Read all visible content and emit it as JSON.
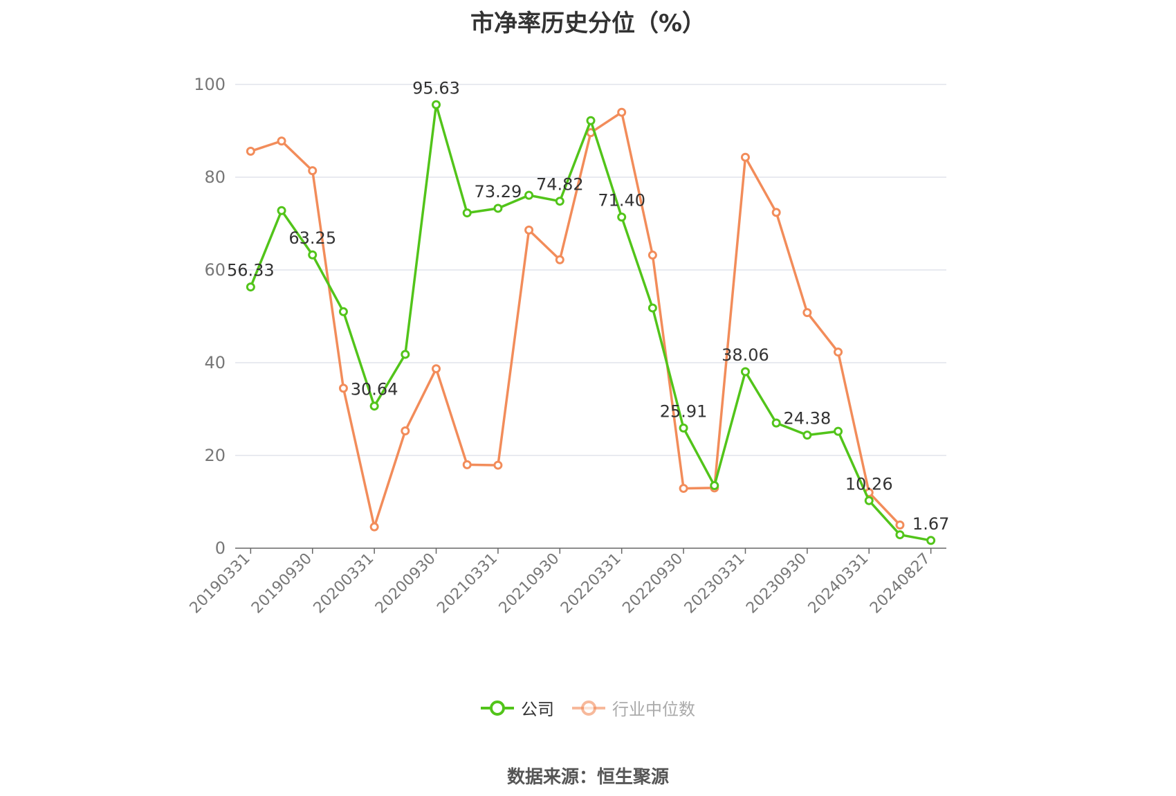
{
  "title": "市净率历史分位（%）",
  "source": "数据来源：恒生聚源",
  "colors": {
    "company": "#52c41a",
    "industry": "#f28c5a",
    "grid": "#e0e3ec",
    "axis": "#666666",
    "tick_text": "#777777",
    "label_text": "#333333",
    "legend_inactive": "#aaaaaa"
  },
  "chart_data": {
    "type": "line",
    "title": "市净率历史分位（%）",
    "xlabel": "",
    "ylabel": "",
    "ylim": [
      0,
      100
    ],
    "yticks": [
      0,
      20,
      40,
      60,
      80,
      100
    ],
    "grid": true,
    "legend_position": "bottom",
    "x": [
      "20190331",
      "20190630",
      "20190930",
      "20191231",
      "20200331",
      "20200630",
      "20200930",
      "20201231",
      "20210331",
      "20210630",
      "20210930",
      "20211231",
      "20220331",
      "20220630",
      "20220930",
      "20221231",
      "20230331",
      "20230630",
      "20230930",
      "20231231",
      "20240331",
      "20240630",
      "20240827"
    ],
    "x_tick_labels": [
      "20190331",
      "20190930",
      "20200331",
      "20200930",
      "20210331",
      "20210930",
      "20220331",
      "20220930",
      "20230331",
      "20230930",
      "20240331",
      "20240827"
    ],
    "series": [
      {
        "name": "公司",
        "values": [
          56.33,
          72.8,
          63.25,
          51.0,
          30.64,
          41.8,
          95.63,
          72.3,
          73.29,
          76.1,
          74.82,
          92.2,
          71.4,
          51.8,
          25.91,
          13.5,
          38.06,
          27.0,
          24.38,
          25.2,
          10.26,
          2.9,
          1.67
        ],
        "labels": [
          "56.33",
          "",
          "63.25",
          "",
          "30.64",
          "",
          "95.63",
          "",
          "73.29",
          "",
          "74.82",
          "",
          "71.40",
          "",
          "25.91",
          "",
          "38.06",
          "",
          "24.38",
          "",
          "10.26",
          "",
          "1.67"
        ]
      },
      {
        "name": "行业中位数",
        "values": [
          85.6,
          87.8,
          81.4,
          34.5,
          4.6,
          25.3,
          38.7,
          18.0,
          17.9,
          68.6,
          62.2,
          89.6,
          94.0,
          63.2,
          12.9,
          13.0,
          84.3,
          72.4,
          50.8,
          42.3,
          12.0,
          5.0,
          null
        ]
      }
    ]
  }
}
